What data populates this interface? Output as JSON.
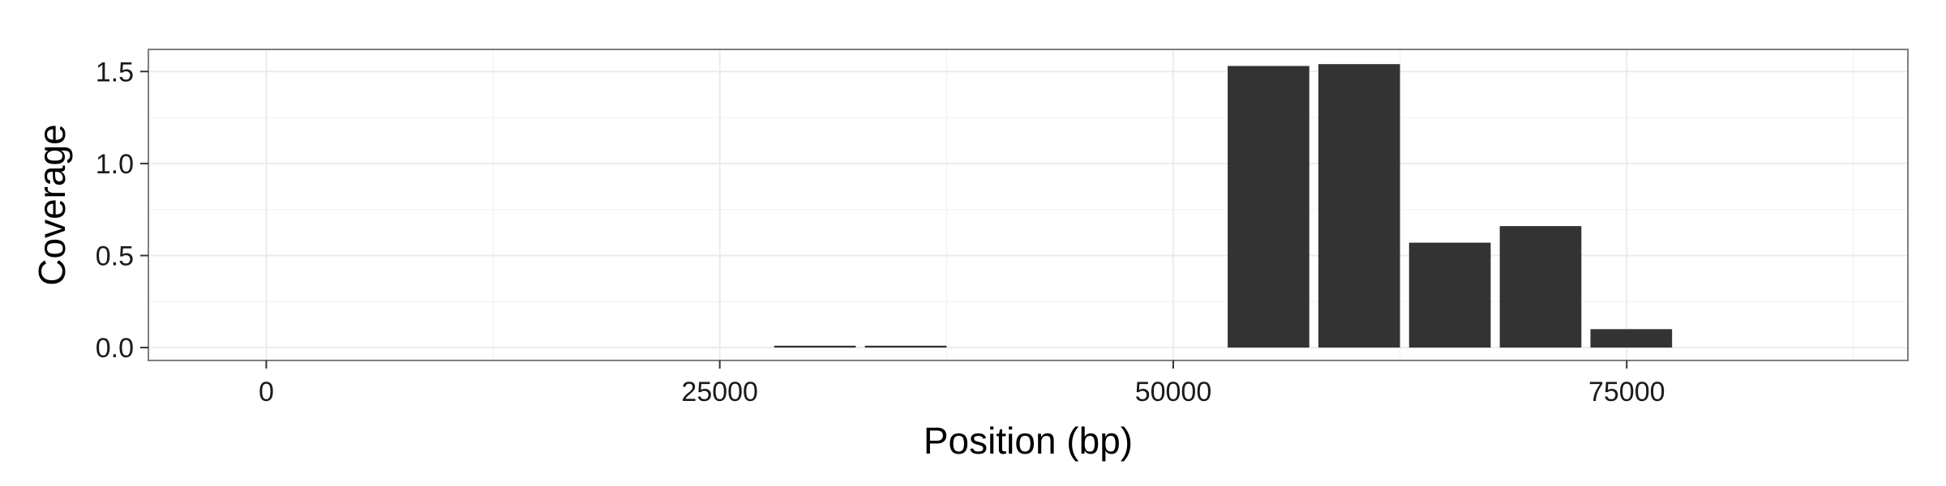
{
  "chart_data": {
    "type": "bar",
    "title": "",
    "xlabel": "Position (bp)",
    "ylabel": "Coverage",
    "xlim": [
      -6500,
      90500
    ],
    "ylim": [
      -0.07,
      1.62
    ],
    "x_ticks": [
      0,
      25000,
      50000,
      75000
    ],
    "x_tick_labels": [
      "0",
      "25000",
      "50000",
      "75000"
    ],
    "y_ticks": [
      0.0,
      0.5,
      1.0,
      1.5
    ],
    "y_tick_labels": [
      "0.0",
      "0.5",
      "1.0",
      "1.5"
    ],
    "grid": true,
    "legend": "none",
    "bar_color": "#333333",
    "bar_width": 4500,
    "bars": [
      {
        "x": 30250,
        "value": 0.01
      },
      {
        "x": 35250,
        "value": 0.01
      },
      {
        "x": 55250,
        "value": 1.53
      },
      {
        "x": 60250,
        "value": 1.54
      },
      {
        "x": 65250,
        "value": 0.57
      },
      {
        "x": 70250,
        "value": 0.66
      },
      {
        "x": 75250,
        "value": 0.1
      }
    ]
  }
}
